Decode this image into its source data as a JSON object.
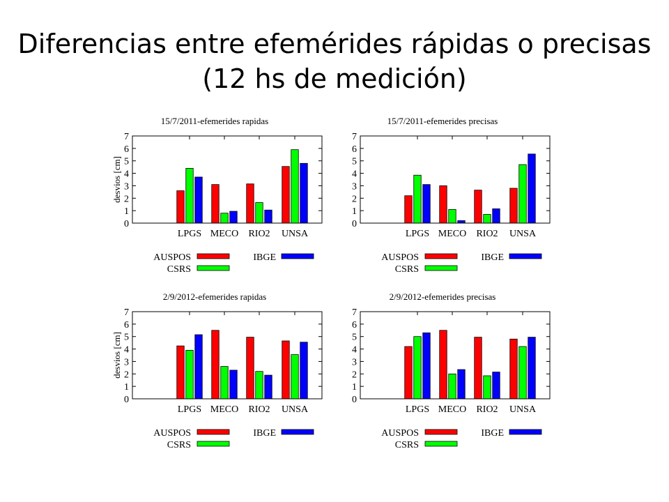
{
  "slide": {
    "title_line1": "Diferencias entre efemérides rápidas o precisas",
    "title_line2": "(12 hs de medición)"
  },
  "colors": {
    "AUSPOS": "#ff0000",
    "CSRS": "#00ff00",
    "IBGE": "#0000ff"
  },
  "chart_data": [
    {
      "type": "bar",
      "title": "15/7/2011-efemerides rapidas",
      "ylabel": "desvios [cm]",
      "ylim": [
        0,
        7
      ],
      "yticks": [
        "0",
        "1",
        "2",
        "3",
        "4",
        "5",
        "6",
        "7"
      ],
      "categories": [
        "LPGS",
        "MECO",
        "RIO2",
        "UNSA"
      ],
      "series": [
        {
          "name": "AUSPOS",
          "values": [
            2.6,
            3.1,
            3.15,
            4.55
          ]
        },
        {
          "name": "CSRS",
          "values": [
            4.4,
            0.8,
            1.65,
            5.9
          ]
        },
        {
          "name": "IBGE",
          "values": [
            3.7,
            0.95,
            1.05,
            4.8
          ]
        }
      ]
    },
    {
      "type": "bar",
      "title": "15/7/2011-efemerides precisas",
      "ylabel": "",
      "ylim": [
        0,
        7
      ],
      "yticks": [
        "0",
        "1",
        "2",
        "3",
        "4",
        "5",
        "6",
        "7"
      ],
      "categories": [
        "LPGS",
        "MECO",
        "RIO2",
        "UNSA"
      ],
      "series": [
        {
          "name": "AUSPOS",
          "values": [
            2.2,
            3.0,
            2.65,
            2.8
          ]
        },
        {
          "name": "CSRS",
          "values": [
            3.85,
            1.1,
            0.7,
            4.7
          ]
        },
        {
          "name": "IBGE",
          "values": [
            3.1,
            0.2,
            1.15,
            5.55
          ]
        }
      ]
    },
    {
      "type": "bar",
      "title": "2/9/2012-efemerides rapidas",
      "ylabel": "desvios [cm]",
      "ylim": [
        0,
        7
      ],
      "yticks": [
        "0",
        "1",
        "2",
        "3",
        "4",
        "5",
        "6",
        "7"
      ],
      "categories": [
        "LPGS",
        "MECO",
        "RIO2",
        "UNSA"
      ],
      "series": [
        {
          "name": "AUSPOS",
          "values": [
            4.25,
            5.5,
            4.95,
            4.65
          ]
        },
        {
          "name": "CSRS",
          "values": [
            3.9,
            2.6,
            2.2,
            3.55
          ]
        },
        {
          "name": "IBGE",
          "values": [
            5.15,
            2.3,
            1.9,
            4.55
          ]
        }
      ]
    },
    {
      "type": "bar",
      "title": "2/9/2012-efemerides precisas",
      "ylabel": "",
      "ylim": [
        0,
        7
      ],
      "yticks": [
        "0",
        "1",
        "2",
        "3",
        "4",
        "5",
        "6",
        "7"
      ],
      "categories": [
        "LPGS",
        "MECO",
        "RIO2",
        "UNSA"
      ],
      "series": [
        {
          "name": "AUSPOS",
          "values": [
            4.2,
            5.5,
            4.95,
            4.8
          ]
        },
        {
          "name": "CSRS",
          "values": [
            5.0,
            2.0,
            1.85,
            4.2
          ]
        },
        {
          "name": "IBGE",
          "values": [
            5.3,
            2.35,
            2.15,
            4.95
          ]
        }
      ]
    }
  ]
}
